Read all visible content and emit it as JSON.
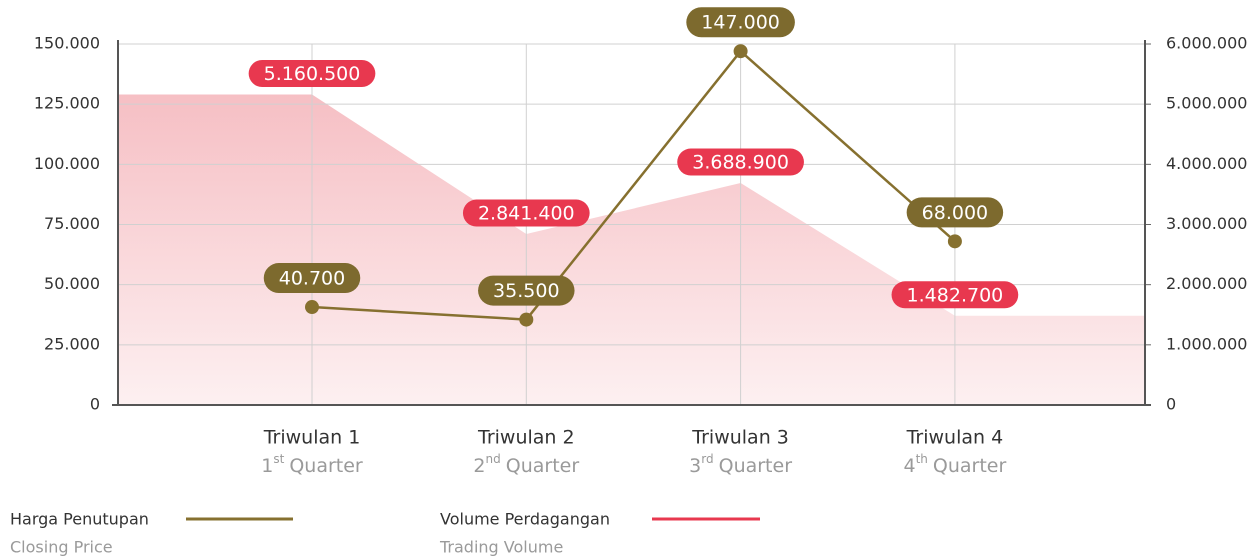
{
  "chart_data": {
    "type": "line",
    "categories": [
      "Triwulan 1",
      "Triwulan 2",
      "Triwulan 3",
      "Triwulan 4"
    ],
    "category_sublabels": [
      {
        "num": "1",
        "sup": "st",
        "text": "Quarter"
      },
      {
        "num": "2",
        "sup": "nd",
        "text": "Quarter"
      },
      {
        "num": "3",
        "sup": "rd",
        "text": "Quarter"
      },
      {
        "num": "4",
        "sup": "th",
        "text": "Quarter"
      }
    ],
    "series": [
      {
        "name": "Harga Penutupan",
        "subname": "Closing Price",
        "color": "#86702f",
        "kind": "line",
        "values": [
          40700,
          35500,
          147000,
          68000
        ],
        "value_labels": [
          "40.700",
          "35.500",
          "147.000",
          "68.000"
        ]
      },
      {
        "name": "Volume Perdagangan",
        "subname": "Trading Volume",
        "color": "#e8384f",
        "kind": "area",
        "axis": "y2",
        "values": [
          5160500,
          2841400,
          3688900,
          1482700
        ],
        "value_labels": [
          "5.160.500",
          "2.841.400",
          "3.688.900",
          "1.482.700"
        ]
      }
    ],
    "ylim": [
      0,
      150000
    ],
    "yticks": [
      0,
      {
        "value": 25000,
        "label": "25.000"
      },
      {
        "value": 50000,
        "label": "50.000"
      },
      {
        "value": 75000,
        "label": "75.000"
      },
      {
        "value": 100000,
        "label": "100.000"
      },
      {
        "value": 125000,
        "label": "125.000"
      },
      {
        "value": 150000,
        "label": "150.000"
      }
    ],
    "y2lim": [
      0,
      6000000
    ],
    "y2ticks": [
      0,
      {
        "value": 1000000,
        "label": "1.000.000"
      },
      {
        "value": 2000000,
        "label": "2.000.000"
      },
      {
        "value": 3000000,
        "label": "3.000.000"
      },
      {
        "value": 4000000,
        "label": "4.000.000"
      },
      {
        "value": 5000000,
        "label": "5.000.000"
      },
      {
        "value": 6000000,
        "label": "6.000.000"
      }
    ],
    "grid": true
  }
}
